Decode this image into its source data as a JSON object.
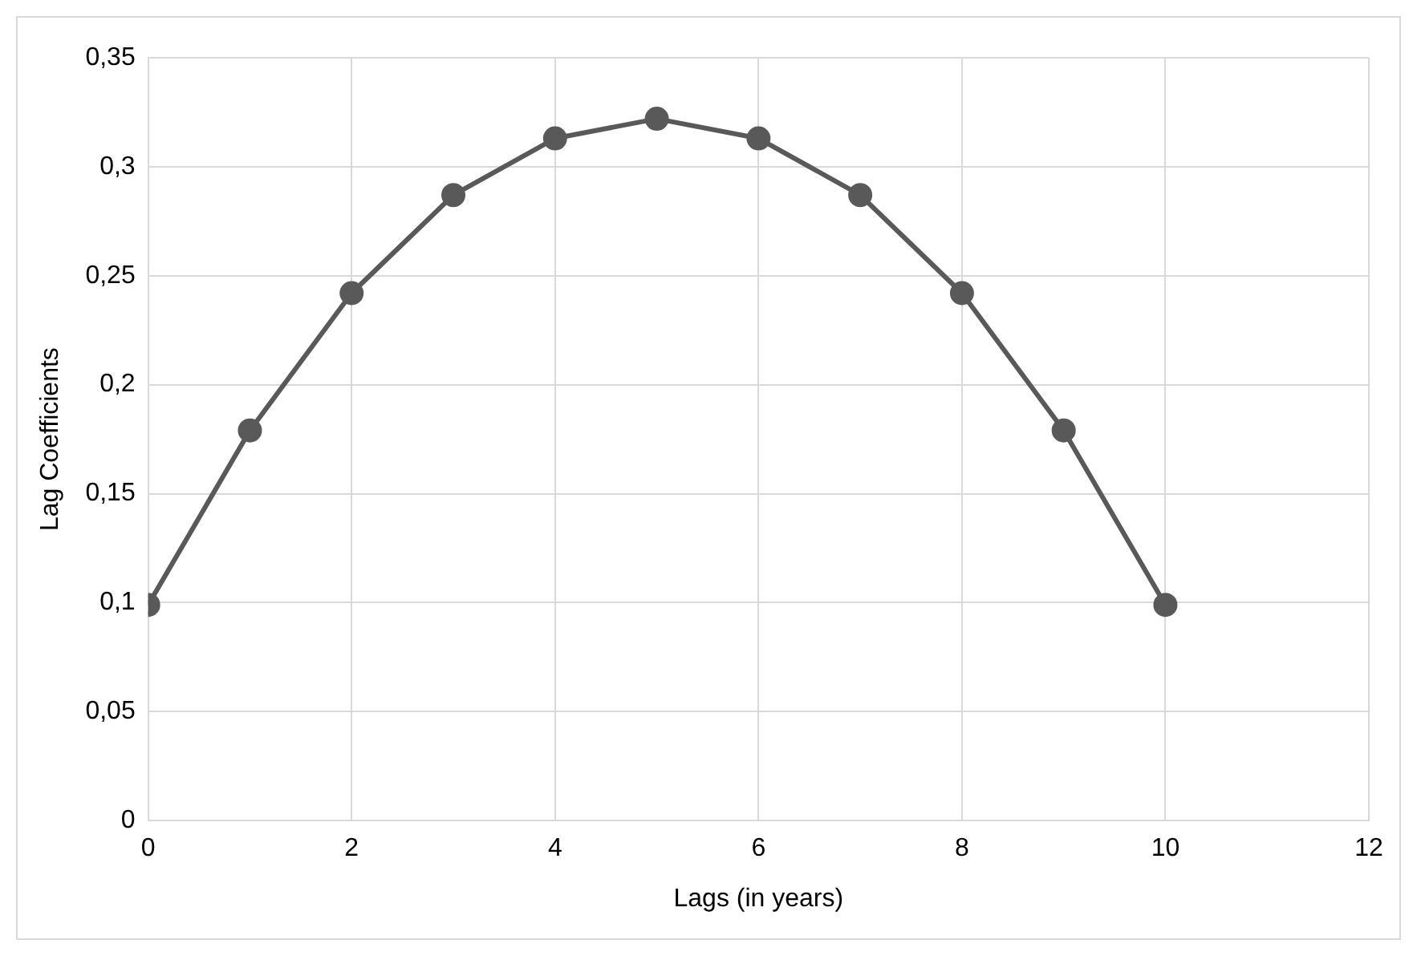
{
  "chart_data": {
    "type": "line",
    "xlabel": "Lags (in years)",
    "ylabel": "Lag Coefficients",
    "x": [
      0,
      1,
      2,
      3,
      4,
      5,
      6,
      7,
      8,
      9,
      10
    ],
    "series": [
      {
        "color": "#595959",
        "values": [
          0.099,
          0.179,
          0.242,
          0.287,
          0.313,
          0.322,
          0.313,
          0.287,
          0.242,
          0.179,
          0.099
        ]
      }
    ],
    "xlim": [
      0,
      12
    ],
    "xticks": [
      0,
      2,
      4,
      6,
      8,
      10,
      12
    ],
    "ylim": [
      0,
      0.35
    ],
    "yticks": [
      0,
      {
        "value": 0.05,
        "label": "0,05"
      },
      {
        "value": 0.1,
        "label": "0,1"
      },
      {
        "value": 0.15,
        "label": "0,15"
      },
      {
        "value": 0.2,
        "label": "0,2"
      },
      {
        "value": 0.25,
        "label": "0,25"
      },
      {
        "value": 0.3,
        "label": "0,3"
      },
      {
        "value": 0.35,
        "label": "0,35"
      }
    ],
    "grid": true,
    "legend": false,
    "marker": "circle",
    "line_style": "solid"
  }
}
